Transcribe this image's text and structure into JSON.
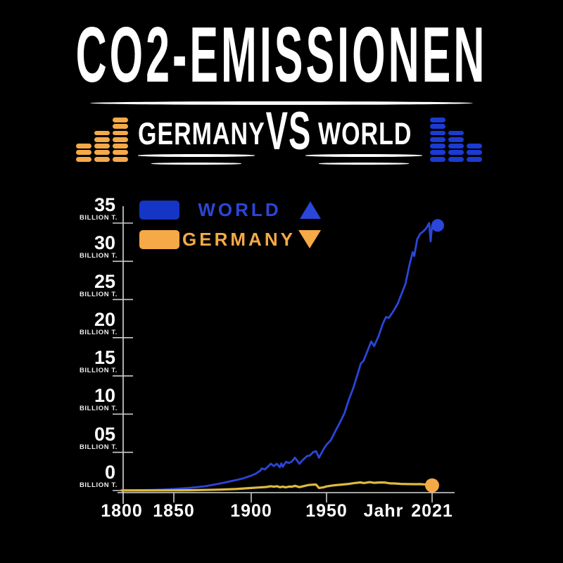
{
  "header": {
    "title": "CO2-EMISSIONEN",
    "versus": {
      "left_label": "GERMANY",
      "vs_label": "VS",
      "right_label": "WORLD"
    }
  },
  "icons": {
    "left_equalizer": {
      "name": "equalizer-bars-ascending",
      "color": "#F5A947",
      "columns": [
        3,
        5,
        7
      ]
    },
    "right_equalizer": {
      "name": "equalizer-bars-descending",
      "color": "#1B3BD2",
      "columns": [
        7,
        5,
        3
      ]
    }
  },
  "colors": {
    "background": "#000000",
    "text": "#FFFFFF",
    "axis": "#D8D8D8",
    "world_blue": "#1535C4",
    "world_line_blue": "#2B46D8",
    "germany_orange": "#F5A947",
    "germany_line_yellow": "#DDBB40"
  },
  "legend": {
    "items": [
      {
        "label": "WORLD",
        "color": "#2B46D8",
        "marker": "triangle-up"
      },
      {
        "label": "GERMANY",
        "color": "#F5A947",
        "marker": "triangle-down"
      }
    ]
  },
  "chart_data": {
    "type": "line",
    "title": "CO2-Emissionen: Germany vs World",
    "xlabel": "Jahr",
    "ylabel": "BILLION T.",
    "ylim": [
      0,
      35
    ],
    "grid": false,
    "legend_position": "top-left",
    "y_ticks": [
      {
        "label": "35",
        "value": 35,
        "sub": "BILLION T."
      },
      {
        "label": "30",
        "value": 30,
        "sub": "BILLION T."
      },
      {
        "label": "25",
        "value": 25,
        "sub": "BILLION T."
      },
      {
        "label": "20",
        "value": 20,
        "sub": "BILLION T."
      },
      {
        "label": "15",
        "value": 15,
        "sub": "BILLION T."
      },
      {
        "label": "10",
        "value": 10,
        "sub": "BILLION T."
      },
      {
        "label": "05",
        "value": 5,
        "sub": "BILLION T."
      },
      {
        "label": "0",
        "value": 0,
        "sub": "BILLION T."
      }
    ],
    "x_ticks": [
      {
        "label": "1800",
        "year": 1800,
        "tick": false
      },
      {
        "label": "1850",
        "year": 1850,
        "tick": true
      },
      {
        "label": "1900",
        "year": 1900,
        "tick": true
      },
      {
        "label": "1950",
        "year": 1950,
        "tick": true
      },
      {
        "label": "2021",
        "year": 2021,
        "tick": true
      }
    ],
    "series": [
      {
        "name": "WORLD",
        "color": "#2B46D8",
        "line_width": 2.8,
        "end_marker_radius": 9,
        "points": [
          [
            1800,
            0.03
          ],
          [
            1815,
            0.05
          ],
          [
            1830,
            0.08
          ],
          [
            1840,
            0.12
          ],
          [
            1850,
            0.2
          ],
          [
            1860,
            0.34
          ],
          [
            1870,
            0.55
          ],
          [
            1880,
            0.92
          ],
          [
            1890,
            1.35
          ],
          [
            1895,
            1.6
          ],
          [
            1900,
            1.95
          ],
          [
            1903,
            2.2
          ],
          [
            1906,
            2.6
          ],
          [
            1907,
            2.9
          ],
          [
            1909,
            2.75
          ],
          [
            1911,
            3.1
          ],
          [
            1913,
            3.5
          ],
          [
            1915,
            3.2
          ],
          [
            1917,
            3.5
          ],
          [
            1919,
            3.05
          ],
          [
            1920,
            3.55
          ],
          [
            1921,
            3.1
          ],
          [
            1923,
            3.75
          ],
          [
            1925,
            3.6
          ],
          [
            1927,
            3.8
          ],
          [
            1929,
            4.3
          ],
          [
            1932,
            3.5
          ],
          [
            1934,
            3.95
          ],
          [
            1937,
            4.5
          ],
          [
            1939,
            4.6
          ],
          [
            1941,
            5.0
          ],
          [
            1943,
            5.15
          ],
          [
            1945,
            4.3
          ],
          [
            1948,
            5.4
          ],
          [
            1950,
            6.0
          ],
          [
            1953,
            6.6
          ],
          [
            1956,
            7.8
          ],
          [
            1959,
            8.9
          ],
          [
            1962,
            10.1
          ],
          [
            1965,
            11.9
          ],
          [
            1968,
            13.4
          ],
          [
            1971,
            15.3
          ],
          [
            1973,
            16.6
          ],
          [
            1975,
            17.0
          ],
          [
            1977,
            18.0
          ],
          [
            1980,
            19.5
          ],
          [
            1982,
            18.9
          ],
          [
            1985,
            20.2
          ],
          [
            1988,
            21.9
          ],
          [
            1990,
            22.7
          ],
          [
            1992,
            22.6
          ],
          [
            1995,
            23.5
          ],
          [
            1998,
            24.5
          ],
          [
            2000,
            25.5
          ],
          [
            2003,
            27.0
          ],
          [
            2006,
            29.7
          ],
          [
            2008,
            31.2
          ],
          [
            2009,
            30.7
          ],
          [
            2011,
            32.9
          ],
          [
            2013,
            33.6
          ],
          [
            2015,
            33.9
          ],
          [
            2017,
            34.3
          ],
          [
            2019,
            35.0
          ],
          [
            2020,
            32.6
          ],
          [
            2021,
            34.7
          ]
        ]
      },
      {
        "name": "GERMANY",
        "color": "#DDBB40",
        "line_width": 3.2,
        "end_marker_radius": 10,
        "end_marker_color": "#F5A947",
        "points": [
          [
            1800,
            0.005
          ],
          [
            1820,
            0.01
          ],
          [
            1840,
            0.015
          ],
          [
            1850,
            0.02
          ],
          [
            1860,
            0.035
          ],
          [
            1870,
            0.07
          ],
          [
            1880,
            0.12
          ],
          [
            1890,
            0.19
          ],
          [
            1900,
            0.33
          ],
          [
            1905,
            0.4
          ],
          [
            1910,
            0.46
          ],
          [
            1913,
            0.56
          ],
          [
            1915,
            0.5
          ],
          [
            1917,
            0.56
          ],
          [
            1919,
            0.43
          ],
          [
            1921,
            0.5
          ],
          [
            1923,
            0.41
          ],
          [
            1925,
            0.52
          ],
          [
            1927,
            0.5
          ],
          [
            1929,
            0.62
          ],
          [
            1932,
            0.44
          ],
          [
            1935,
            0.58
          ],
          [
            1938,
            0.72
          ],
          [
            1941,
            0.76
          ],
          [
            1943,
            0.78
          ],
          [
            1945,
            0.33
          ],
          [
            1948,
            0.42
          ],
          [
            1950,
            0.53
          ],
          [
            1955,
            0.68
          ],
          [
            1960,
            0.77
          ],
          [
            1965,
            0.87
          ],
          [
            1970,
            1.0
          ],
          [
            1973,
            1.06
          ],
          [
            1975,
            0.98
          ],
          [
            1979,
            1.1
          ],
          [
            1982,
            1.0
          ],
          [
            1985,
            1.05
          ],
          [
            1988,
            1.06
          ],
          [
            1990,
            1.02
          ],
          [
            1993,
            0.93
          ],
          [
            1996,
            0.92
          ],
          [
            2000,
            0.87
          ],
          [
            2005,
            0.84
          ],
          [
            2010,
            0.83
          ],
          [
            2013,
            0.84
          ],
          [
            2016,
            0.8
          ],
          [
            2019,
            0.71
          ],
          [
            2020,
            0.64
          ],
          [
            2021,
            0.67
          ]
        ]
      }
    ]
  }
}
